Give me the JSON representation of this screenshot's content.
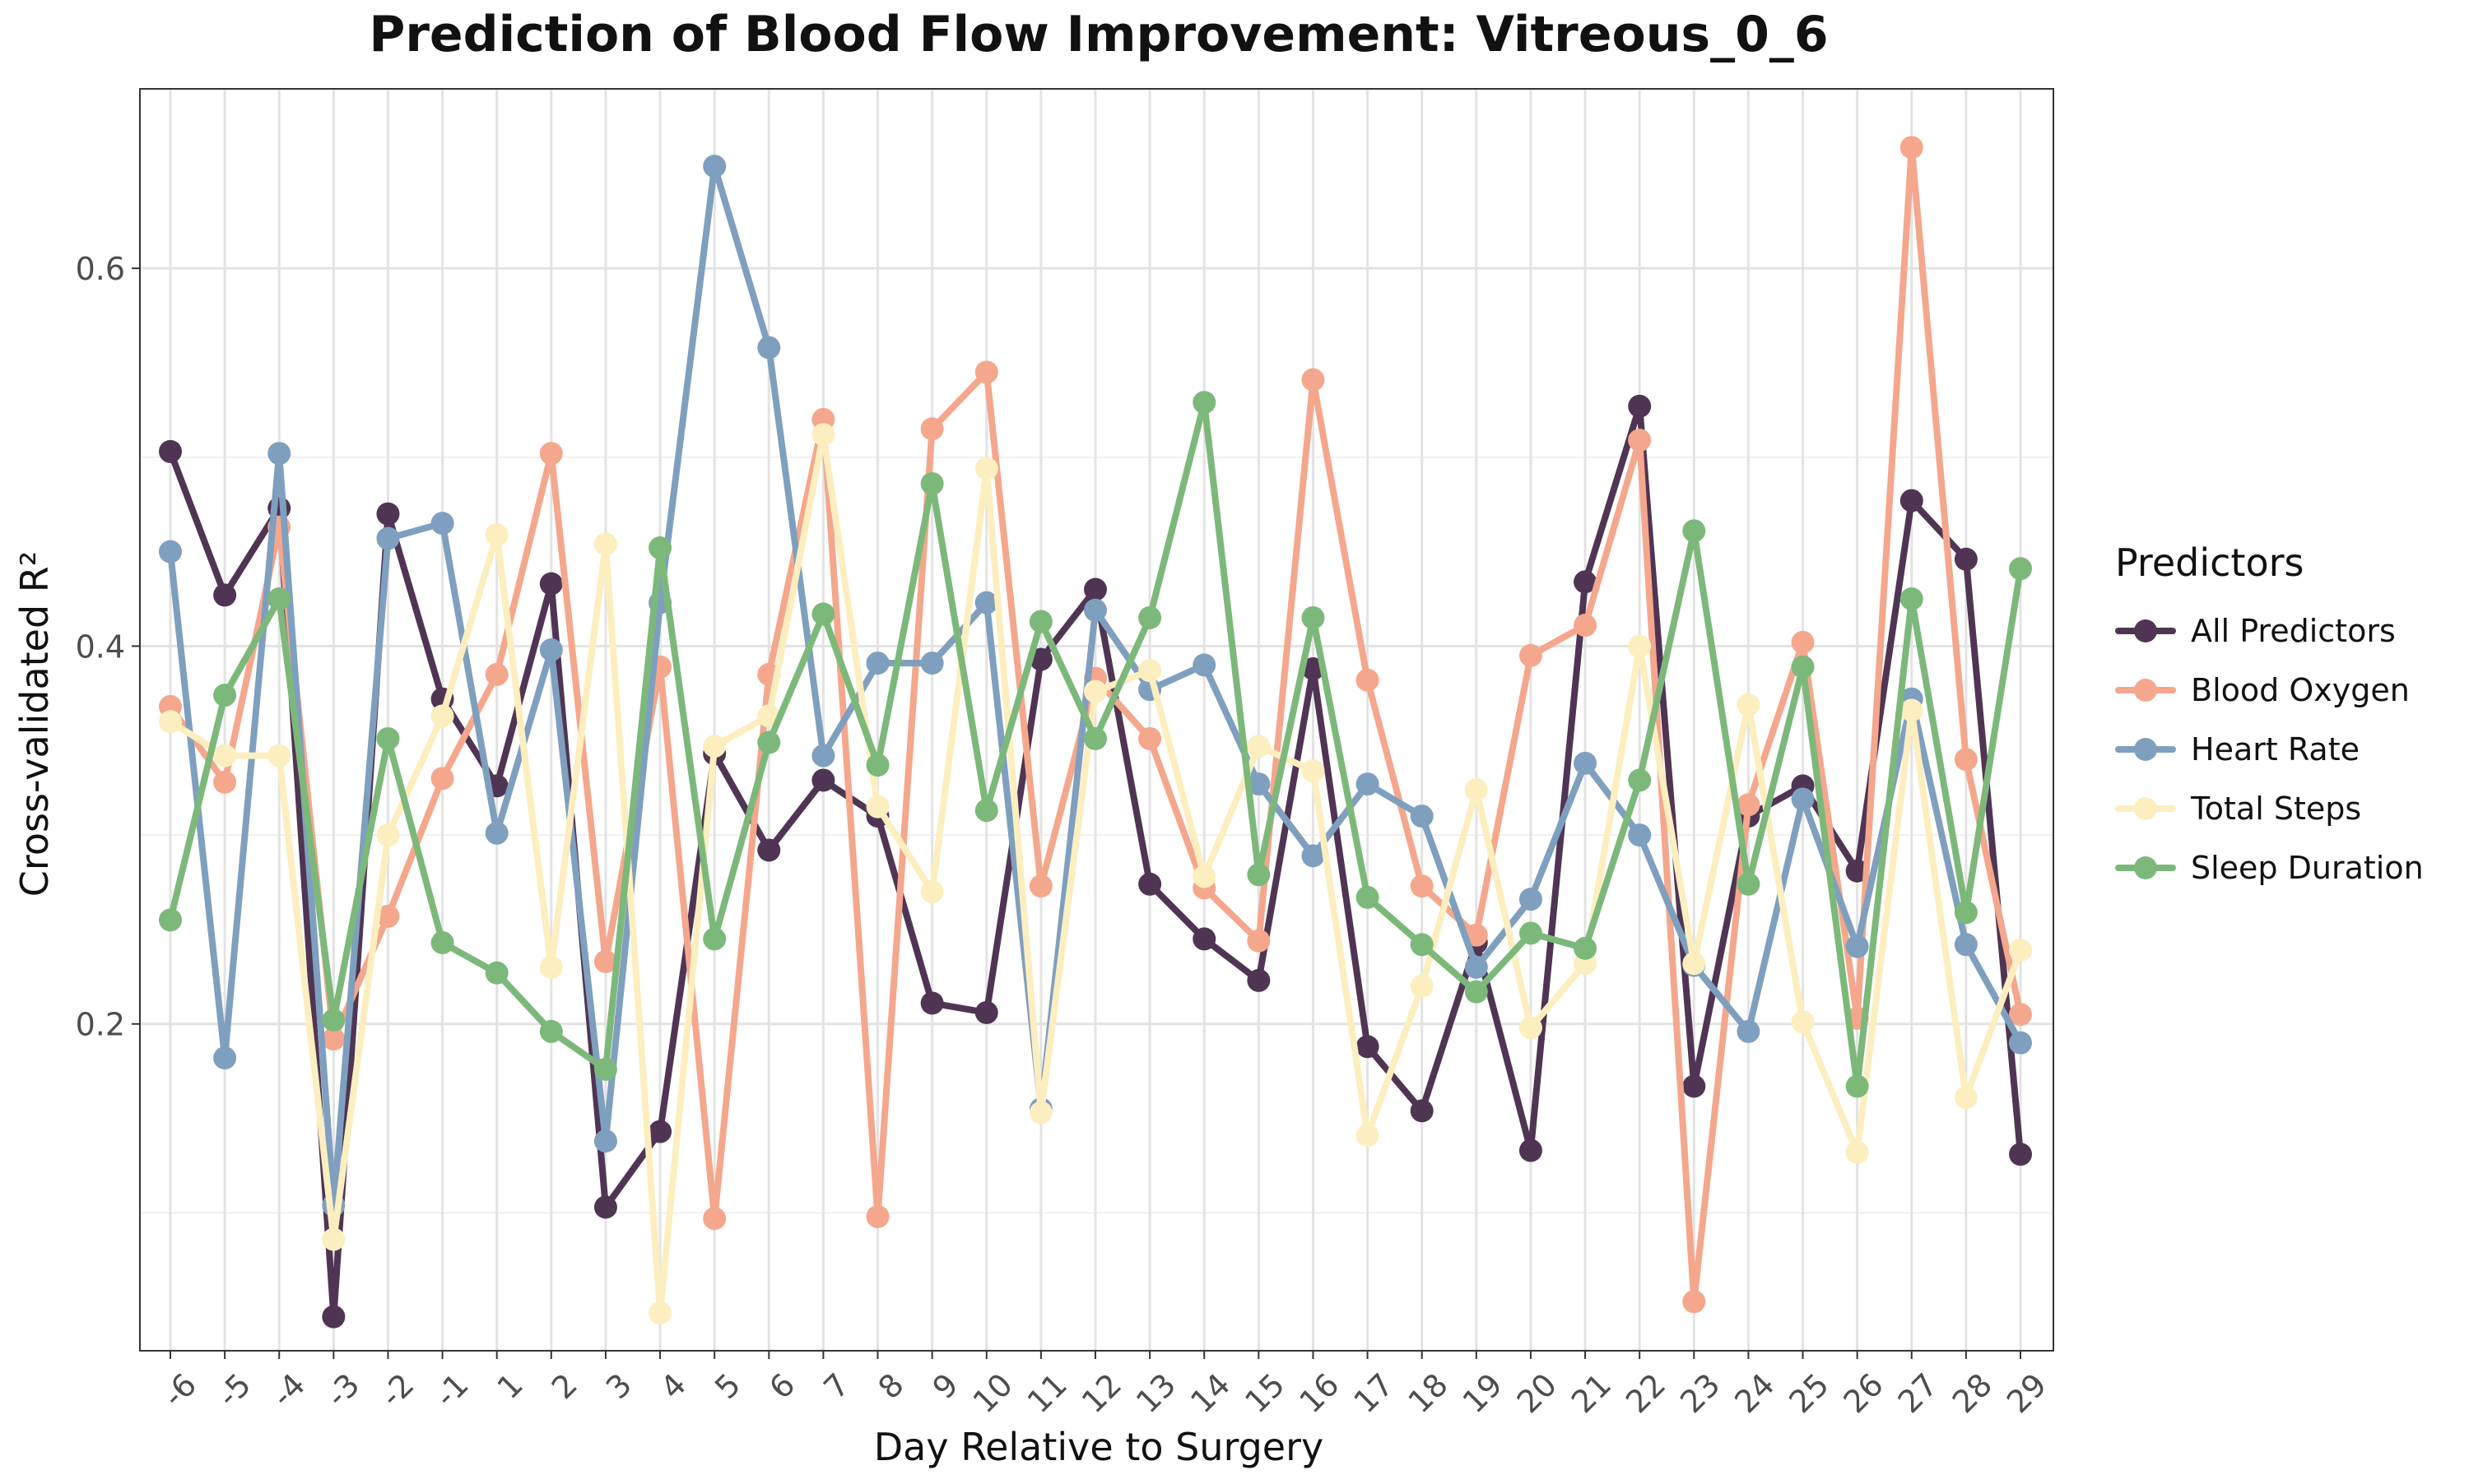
{
  "chart_data": {
    "type": "line",
    "title": "Prediction of Blood Flow Improvement: Vitreous_0_6",
    "xlabel": "Day Relative to Surgery",
    "ylabel": "Cross-validated R²",
    "x": [
      -6,
      -5,
      -4,
      -3,
      -2,
      -1,
      1,
      2,
      3,
      4,
      5,
      6,
      7,
      8,
      9,
      10,
      11,
      12,
      13,
      14,
      15,
      16,
      17,
      18,
      19,
      20,
      21,
      22,
      23,
      24,
      25,
      26,
      27,
      28,
      29
    ],
    "x_tick_labels": [
      "-6",
      "-5",
      "-4",
      "-3",
      "-2",
      "-1",
      "1",
      "2",
      "3",
      "4",
      "5",
      "6",
      "7",
      "8",
      "9",
      "10",
      "11",
      "12",
      "13",
      "14",
      "15",
      "16",
      "17",
      "18",
      "19",
      "20",
      "21",
      "22",
      "23",
      "24",
      "25",
      "26",
      "27",
      "28",
      "29"
    ],
    "ylim": [
      0.027,
      0.695
    ],
    "y_ticks": [
      0.2,
      0.4,
      0.6
    ],
    "y_tick_labels": [
      "0.2",
      "0.4",
      "0.6"
    ],
    "grid": true,
    "legend": {
      "title": "Predictors",
      "position": "right"
    },
    "series": [
      {
        "name": "All Predictors",
        "color": "#4f3553",
        "values": [
          0.503,
          0.427,
          0.473,
          0.045,
          0.47,
          0.372,
          0.326,
          0.433,
          0.103,
          0.143,
          0.343,
          0.292,
          0.329,
          0.31,
          0.211,
          0.206,
          0.393,
          0.43,
          0.274,
          0.245,
          0.223,
          0.388,
          0.188,
          0.154,
          0.243,
          0.133,
          0.434,
          0.527,
          0.167,
          0.31,
          0.326,
          0.281,
          0.477,
          0.446,
          0.131
        ]
      },
      {
        "name": "Blood Oxygen",
        "color": "#f4a78c",
        "values": [
          0.368,
          0.328,
          0.463,
          0.192,
          0.257,
          0.33,
          0.385,
          0.502,
          0.233,
          0.389,
          0.097,
          0.385,
          0.52,
          0.098,
          0.515,
          0.545,
          0.273,
          0.383,
          0.351,
          0.272,
          0.244,
          0.541,
          0.382,
          0.273,
          0.247,
          0.395,
          0.411,
          0.509,
          0.053,
          0.316,
          0.402,
          0.203,
          0.664,
          0.34,
          0.205
        ]
      },
      {
        "name": "Heart Rate",
        "color": "#7f9fbf",
        "values": [
          0.45,
          0.182,
          0.502,
          0.104,
          0.457,
          0.465,
          0.301,
          0.398,
          0.138,
          0.423,
          0.654,
          0.558,
          0.342,
          0.391,
          0.391,
          0.423,
          0.155,
          0.419,
          0.377,
          0.39,
          0.327,
          0.289,
          0.327,
          0.31,
          0.23,
          0.266,
          0.338,
          0.3,
          0.231,
          0.196,
          0.319,
          0.241,
          0.372,
          0.242,
          0.19
        ]
      },
      {
        "name": "Total Steps",
        "color": "#fdeec0",
        "values": [
          0.36,
          0.342,
          0.342,
          0.086,
          0.3,
          0.363,
          0.459,
          0.23,
          0.454,
          0.047,
          0.347,
          0.363,
          0.512,
          0.315,
          0.27,
          0.494,
          0.153,
          0.376,
          0.387,
          0.278,
          0.347,
          0.334,
          0.141,
          0.22,
          0.324,
          0.198,
          0.232,
          0.4,
          0.232,
          0.369,
          0.201,
          0.132,
          0.366,
          0.161,
          0.239
        ]
      },
      {
        "name": "Sleep Duration",
        "color": "#7db87b",
        "values": [
          0.255,
          0.374,
          0.425,
          0.202,
          0.351,
          0.243,
          0.227,
          0.196,
          0.176,
          0.452,
          0.245,
          0.349,
          0.417,
          0.337,
          0.486,
          0.313,
          0.413,
          0.351,
          0.415,
          0.529,
          0.279,
          0.415,
          0.267,
          0.242,
          0.217,
          0.248,
          0.24,
          0.329,
          0.461,
          0.274,
          0.389,
          0.167,
          0.425,
          0.259,
          0.441
        ]
      }
    ]
  }
}
